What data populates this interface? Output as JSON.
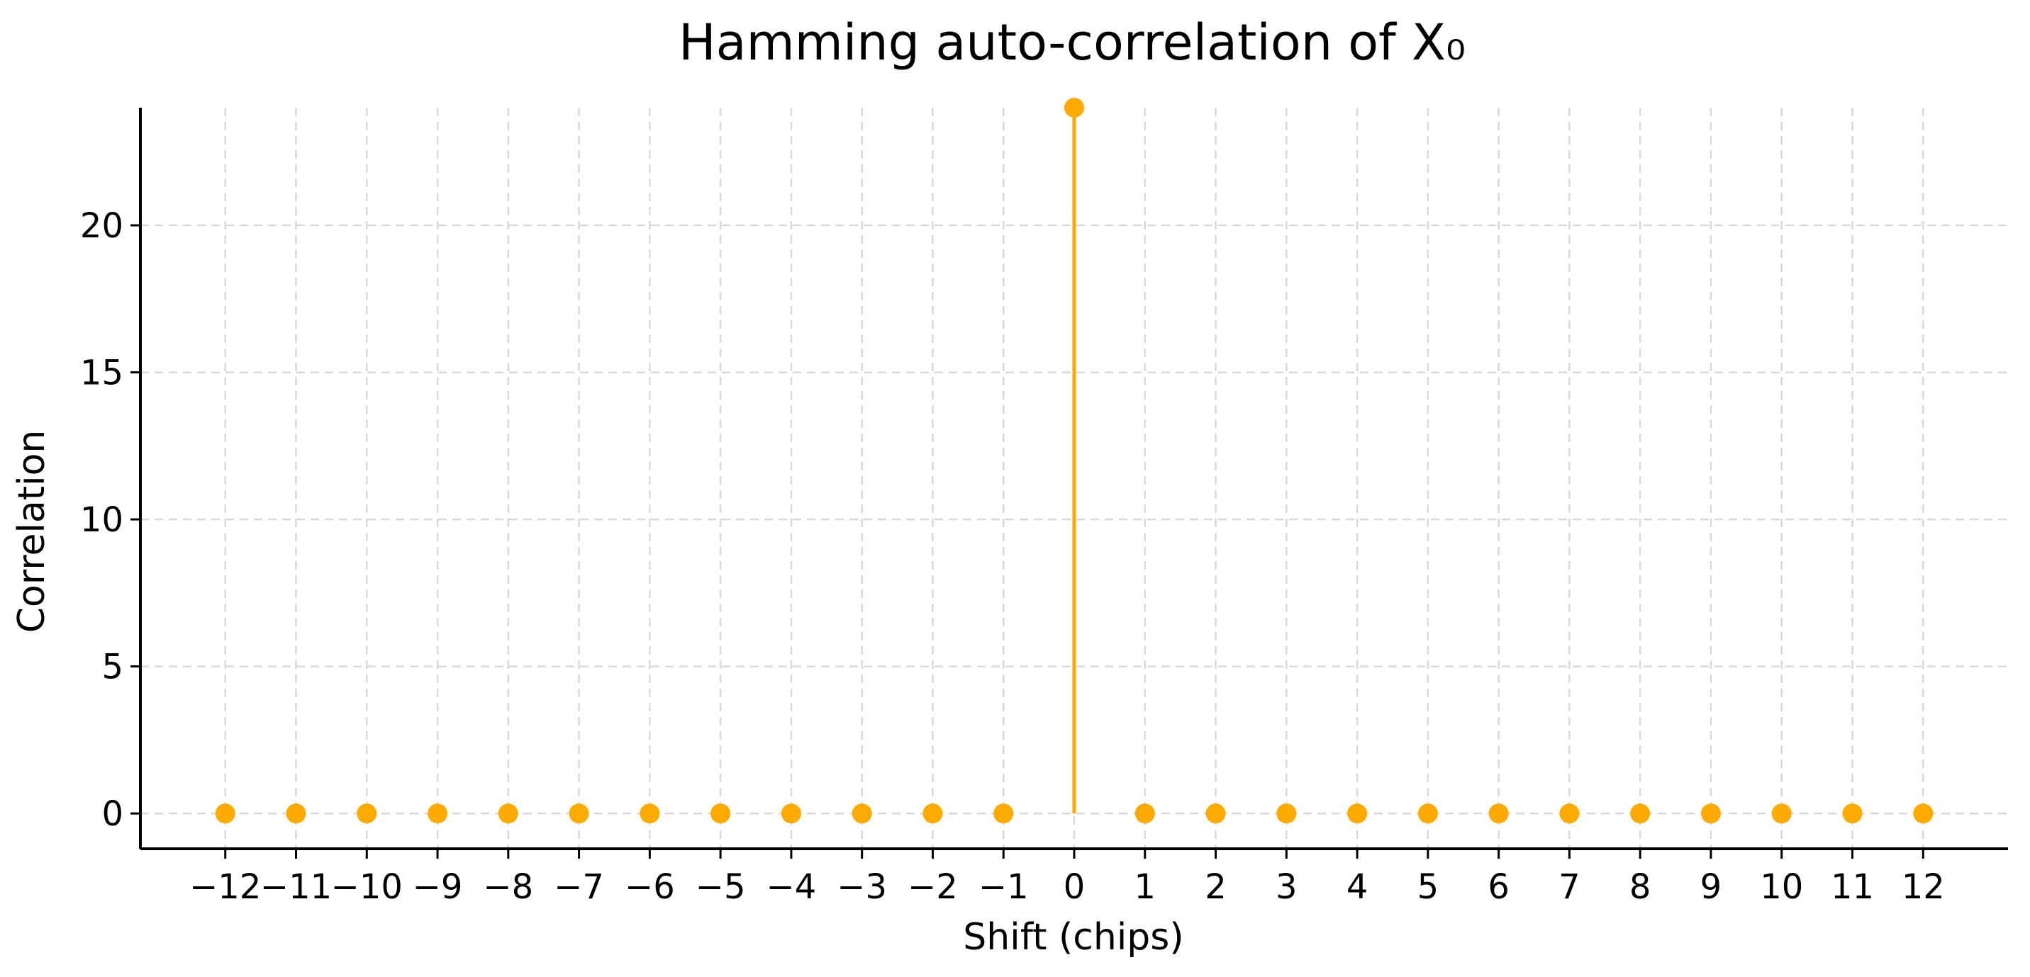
{
  "chart_data": {
    "type": "stem",
    "title": "Hamming auto-correlation of X₀",
    "xlabel": "Shift (chips)",
    "ylabel": "Correlation",
    "x": [
      -12,
      -11,
      -10,
      -9,
      -8,
      -7,
      -6,
      -5,
      -4,
      -3,
      -2,
      -1,
      0,
      1,
      2,
      3,
      4,
      5,
      6,
      7,
      8,
      9,
      10,
      11,
      12
    ],
    "y": [
      0,
      0,
      0,
      0,
      0,
      0,
      0,
      0,
      0,
      0,
      0,
      0,
      24,
      0,
      0,
      0,
      0,
      0,
      0,
      0,
      0,
      0,
      0,
      0,
      0
    ],
    "x_ticks": [
      "−12",
      "−11",
      "−10",
      "−9",
      "−8",
      "−7",
      "−6",
      "−5",
      "−4",
      "−3",
      "−2",
      "−1",
      "0",
      "1",
      "2",
      "3",
      "4",
      "5",
      "6",
      "7",
      "8",
      "9",
      "10",
      "11",
      "12"
    ],
    "y_ticks": [
      0,
      5,
      10,
      15,
      20
    ],
    "xlim": [
      -13.2,
      13.2
    ],
    "ylim": [
      -1.2,
      24
    ],
    "grid": true,
    "color": "#ffaa00"
  }
}
